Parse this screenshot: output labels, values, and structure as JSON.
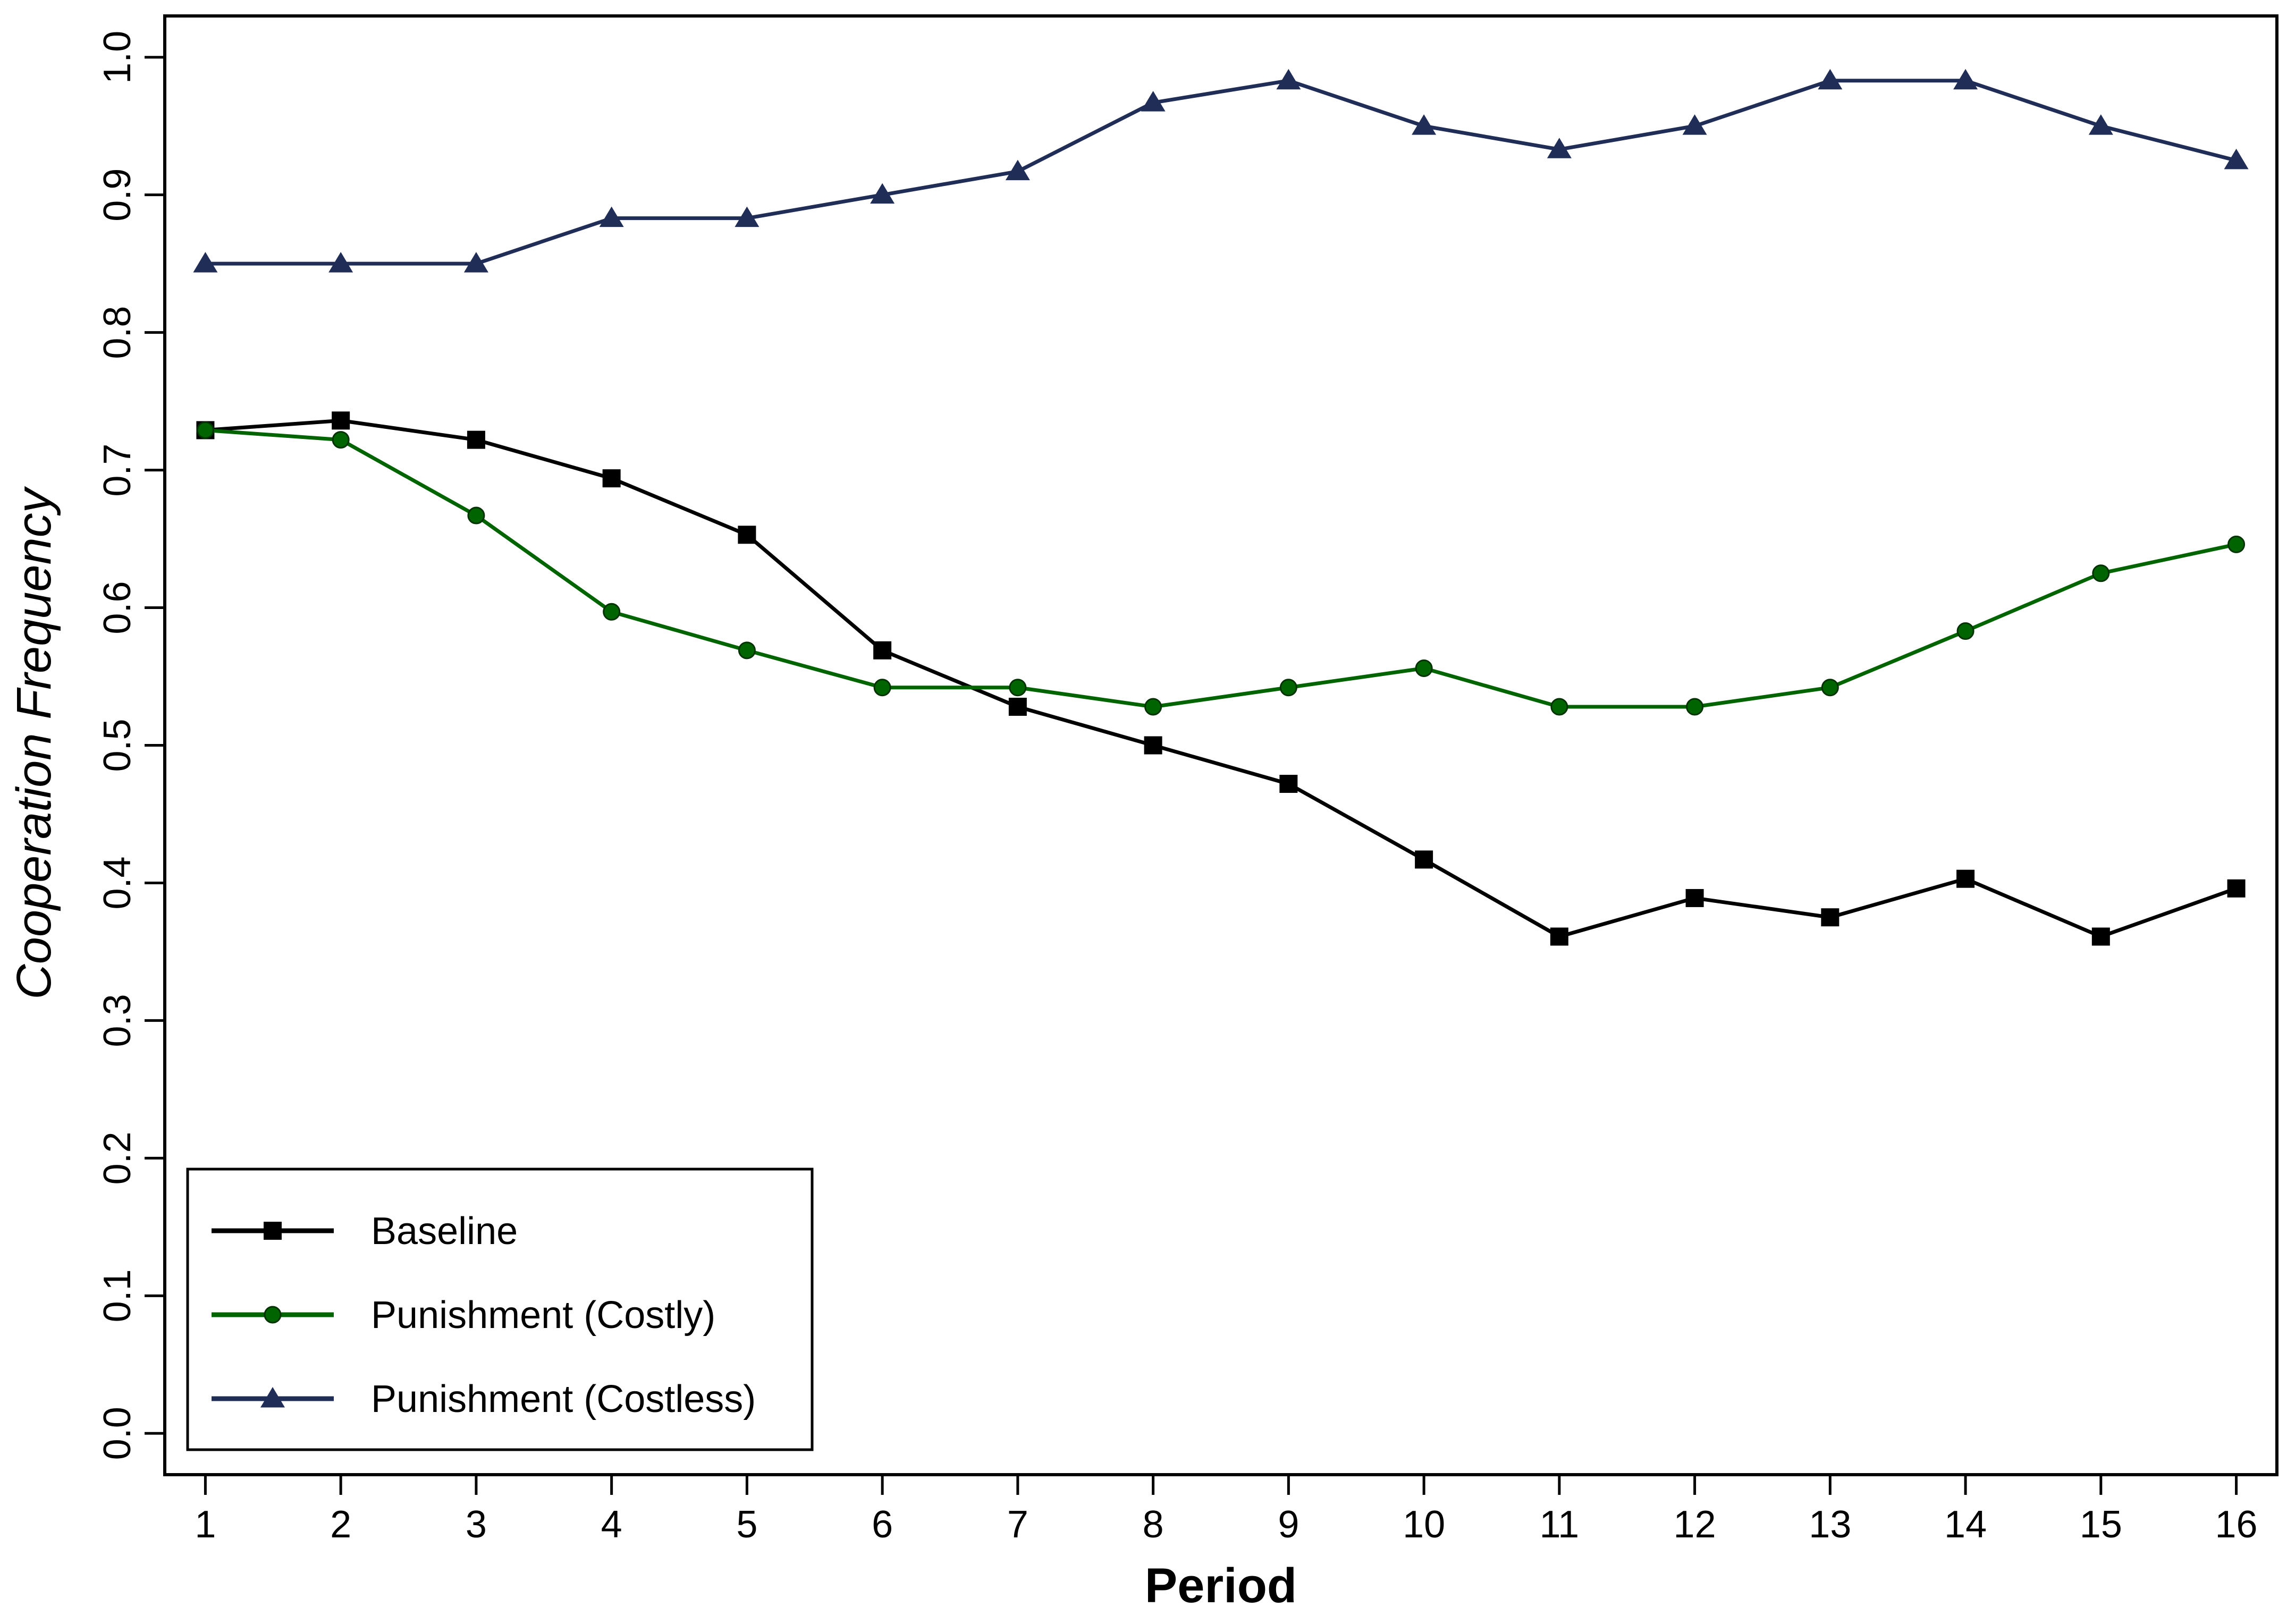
{
  "chart_data": {
    "type": "line",
    "title": "",
    "xlabel": "Period",
    "ylabel": "Cooperation Frequency",
    "x": [
      1,
      2,
      3,
      4,
      5,
      6,
      7,
      8,
      9,
      10,
      11,
      12,
      13,
      14,
      15,
      16
    ],
    "xlim": [
      0.7,
      16.3
    ],
    "ylim": [
      -0.03,
      1.03
    ],
    "yticks": [
      0.0,
      0.1,
      0.2,
      0.3,
      0.4,
      0.5,
      0.6,
      0.7,
      0.8,
      0.9,
      1.0
    ],
    "ytick_labels": [
      "0.0",
      "0.1",
      "0.2",
      "0.3",
      "0.4",
      "0.5",
      "0.6",
      "0.7",
      "0.8",
      "0.9",
      "1.0"
    ],
    "xtick_labels": [
      "1",
      "2",
      "3",
      "4",
      "5",
      "6",
      "7",
      "8",
      "9",
      "10",
      "11",
      "12",
      "13",
      "14",
      "15",
      "16"
    ],
    "grid": false,
    "legend_position": "bottom-left",
    "series": [
      {
        "name": "Baseline",
        "color": "#000000",
        "marker": "square",
        "values": [
          0.729,
          0.736,
          0.722,
          0.694,
          0.653,
          0.569,
          0.528,
          0.5,
          0.472,
          0.417,
          0.361,
          0.389,
          0.375,
          0.403,
          0.361,
          0.396
        ]
      },
      {
        "name": "Punishment (Costly)",
        "color": "#006400",
        "marker": "circle",
        "values": [
          0.729,
          0.722,
          0.667,
          0.597,
          0.569,
          0.542,
          0.542,
          0.528,
          0.542,
          0.556,
          0.528,
          0.528,
          0.542,
          0.583,
          0.625,
          0.646
        ]
      },
      {
        "name": "Punishment (Costless)",
        "color": "#1F2D57",
        "marker": "triangle",
        "values": [
          0.85,
          0.85,
          0.85,
          0.883,
          0.883,
          0.9,
          0.917,
          0.967,
          0.983,
          0.95,
          0.933,
          0.95,
          0.983,
          0.983,
          0.95,
          0.925
        ]
      }
    ]
  }
}
